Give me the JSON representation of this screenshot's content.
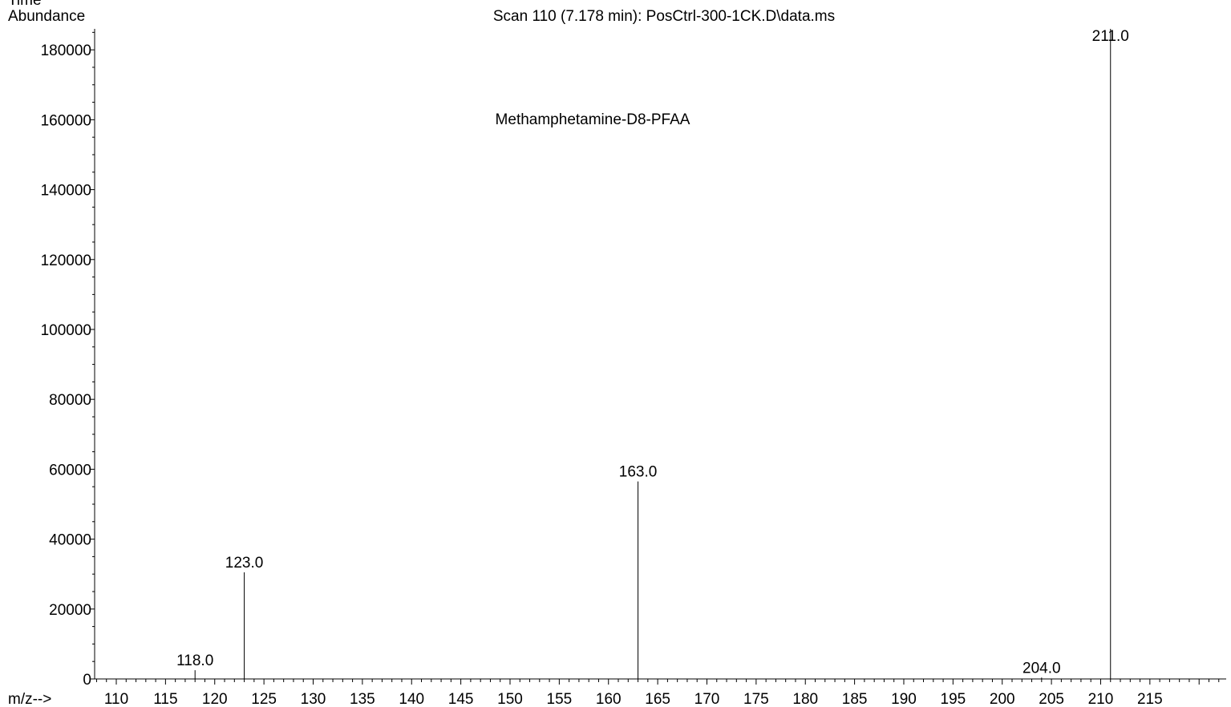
{
  "chart_data": {
    "type": "bar",
    "title": "Scan 110 (7.178 min): PosCtrl-300-1CK.D\\data.ms",
    "annotation": "Methamphetamine-D8-PFAA",
    "ylabel": "Abundance",
    "xlabel": "m/z-->",
    "top_strip_label": "Time",
    "xlim": [
      107.8,
      222.1
    ],
    "ylim": [
      0,
      186000
    ],
    "x_ticks": [
      110,
      115,
      120,
      125,
      130,
      135,
      140,
      145,
      150,
      155,
      160,
      165,
      170,
      175,
      180,
      185,
      190,
      195,
      200,
      205,
      210,
      215
    ],
    "y_ticks": [
      0,
      20000,
      40000,
      60000,
      80000,
      100000,
      120000,
      140000,
      160000,
      180000
    ],
    "grid": false,
    "peaks": [
      {
        "mz": 118.0,
        "abundance": 2500,
        "label": "118.0"
      },
      {
        "mz": 123.0,
        "abundance": 30500,
        "label": "123.0"
      },
      {
        "mz": 163.0,
        "abundance": 56500,
        "label": "163.0"
      },
      {
        "mz": 204.0,
        "abundance": 400,
        "label": "204.0"
      },
      {
        "mz": 211.0,
        "abundance": 186000,
        "label": "211.0"
      }
    ]
  }
}
